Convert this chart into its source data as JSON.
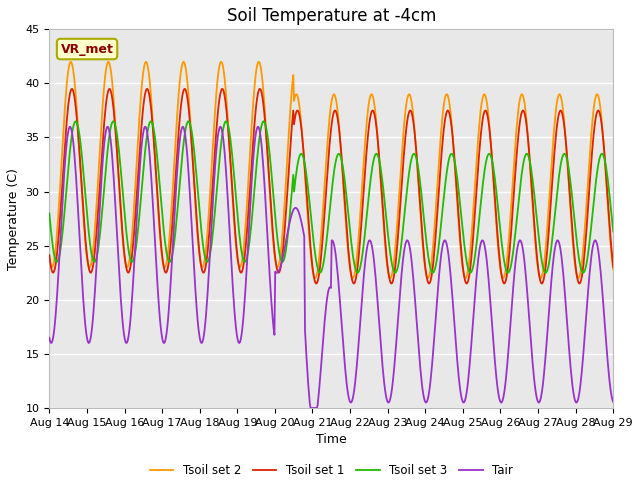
{
  "title": "Soil Temperature at -4cm",
  "xlabel": "Time",
  "ylabel": "Temperature (C)",
  "ylim": [
    10,
    45
  ],
  "annotation": "VR_met",
  "bg_color": "#e8e8e8",
  "line_colors": {
    "Tair": "#9933cc",
    "Tsoil set 1": "#dd2200",
    "Tsoil set 2": "#ff9900",
    "Tsoil set 3": "#22bb00"
  },
  "x_tick_labels": [
    "Aug 14",
    "Aug 15",
    "Aug 16",
    "Aug 17",
    "Aug 18",
    "Aug 19",
    "Aug 20",
    "Aug 21",
    "Aug 22",
    "Aug 23",
    "Aug 24",
    "Aug 25",
    "Aug 26",
    "Aug 27",
    "Aug 28",
    "Aug 29"
  ],
  "title_fontsize": 12
}
